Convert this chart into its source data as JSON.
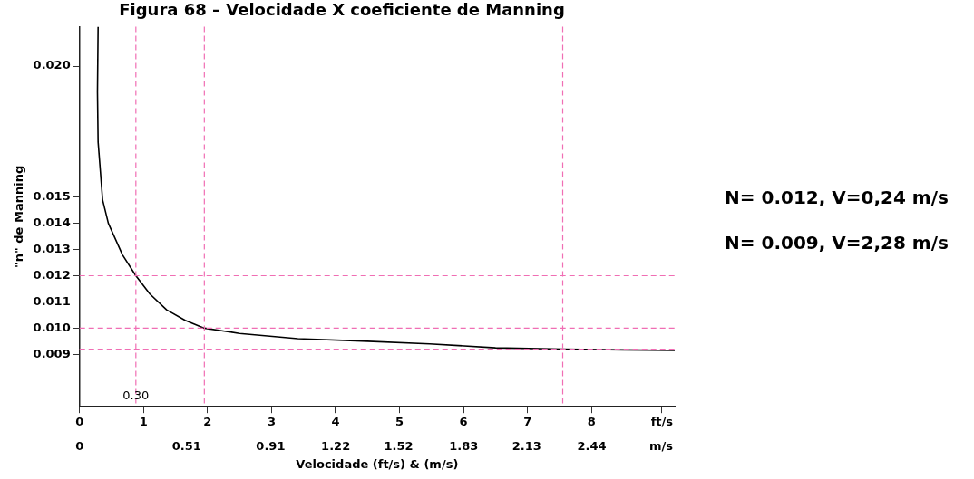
{
  "chart_data": {
    "type": "line",
    "title": "Figura 68 – Velocidade X coeficiente de Manning",
    "xlabel": "Velocidade (ft/s) & (m/s)",
    "ylabel": "\"n\" de Manning",
    "x": [
      0.29,
      0.28,
      0.29,
      0.36,
      0.45,
      0.67,
      0.88,
      1.1,
      1.36,
      1.65,
      1.95,
      2.5,
      3.41,
      4.5,
      5.47,
      6.5,
      7.55,
      8.5,
      9.3
    ],
    "series": [
      {
        "color": "#000000",
        "values": [
          0.0215,
          0.019,
          0.0171,
          0.0149,
          0.014,
          0.0128,
          0.012,
          0.0113,
          0.0107,
          0.0103,
          0.01,
          0.0098,
          0.0096,
          0.0095,
          0.0094,
          0.00925,
          0.0092,
          0.00917,
          0.00915
        ]
      }
    ],
    "xlim": [
      0,
      9.3
    ],
    "ylim": [
      0.007,
      0.0215
    ],
    "xticks": [
      0,
      1,
      2,
      3,
      4,
      5,
      6,
      7,
      8,
      {
        "value": 9.1,
        "label": "ft/s"
      }
    ],
    "x2lim": [
      0,
      2.835
    ],
    "x2ticks": [
      0,
      0.51,
      0.91,
      1.22,
      1.52,
      1.83,
      2.13,
      2.44,
      {
        "value": 2.77,
        "label": "m/s"
      }
    ],
    "yticks": [
      {
        "value": 0.009,
        "label": "0.009"
      },
      {
        "value": 0.01,
        "label": "0.010"
      },
      0.011,
      0.012,
      0.013,
      0.014,
      {
        "value": 0.015,
        "label": "0.015"
      },
      {
        "value": 0.02,
        "label": "0.020"
      }
    ],
    "ref_lines": [
      {
        "axis": "x",
        "value": 0.88,
        "color": "#f06eb4",
        "line_style": "dashed"
      },
      {
        "axis": "x",
        "value": 1.95,
        "color": "#f06eb4",
        "line_style": "dashed"
      },
      {
        "axis": "x",
        "value": 7.55,
        "color": "#f06eb4",
        "line_style": "dashed"
      },
      {
        "axis": "y",
        "value": 0.012,
        "color": "#f06eb4",
        "line_style": "dashed"
      },
      {
        "axis": "y",
        "value": 0.01,
        "color": "#f06eb4",
        "line_style": "dashed"
      },
      {
        "axis": "y",
        "value": 0.0092,
        "color": "#f06eb4",
        "line_style": "dashed"
      }
    ],
    "annotations": [
      {
        "text": "0.30",
        "x": 0.88,
        "y": 0.0074
      },
      "N= 0.012, V=0,24 m/s",
      "N= 0.009, V=2,28 m/s"
    ],
    "grid": false,
    "legend": false,
    "marker": "none",
    "line_style": "solid"
  }
}
